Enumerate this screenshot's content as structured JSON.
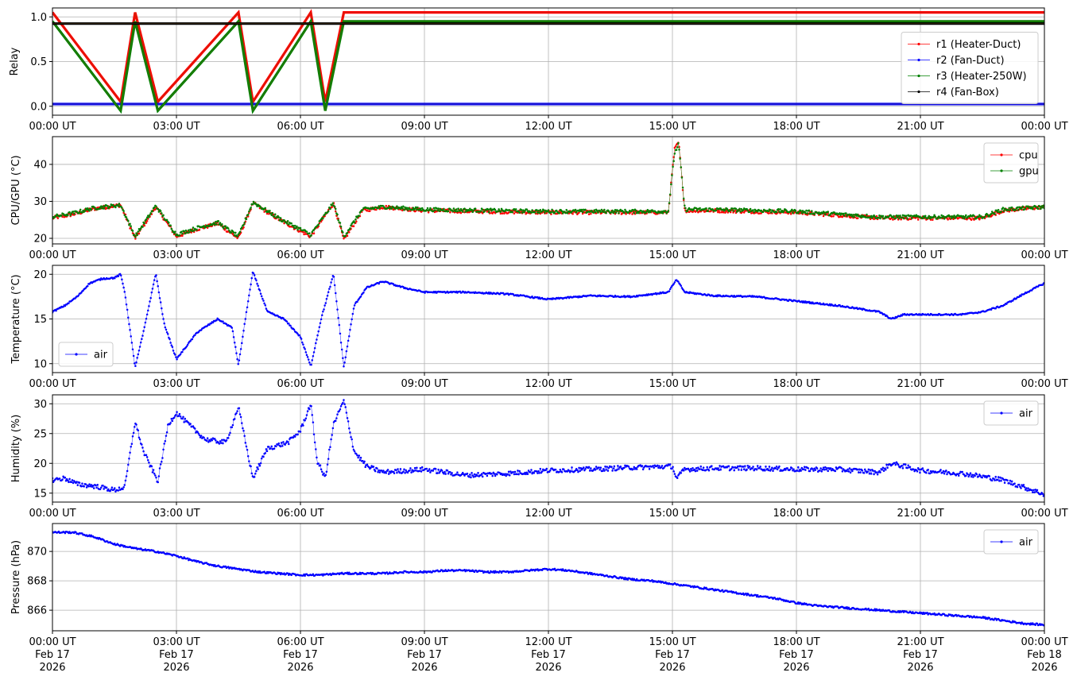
{
  "figure": {
    "time_axis": {
      "range_hours": [
        0,
        24
      ],
      "tick_hours": [
        0,
        3,
        6,
        9,
        12,
        15,
        18,
        21,
        24
      ],
      "tick_labels": [
        "00:00 UT",
        "03:00 UT",
        "06:00 UT",
        "09:00 UT",
        "12:00 UT",
        "15:00 UT",
        "18:00 UT",
        "21:00 UT",
        "00:00 UT"
      ],
      "date_labels": [
        "Feb 17",
        "Feb 17",
        "Feb 17",
        "Feb 17",
        "Feb 17",
        "Feb 17",
        "Feb 17",
        "Feb 17",
        "Feb 18"
      ],
      "year_labels": [
        "2026",
        "2026",
        "2026",
        "2026",
        "2026",
        "2026",
        "2026",
        "2026",
        "2026"
      ]
    }
  },
  "chart_data": [
    {
      "type": "line",
      "ylabel": "Relay",
      "ylim": [
        -0.1,
        1.1
      ],
      "yticks": [
        0.0,
        0.5,
        1.0
      ],
      "ytick_labels": [
        "0.0",
        "0.5",
        "1.0"
      ],
      "grid": true,
      "legend_placement": "center-right",
      "series": [
        {
          "name": "r1 (Heater-Duct)",
          "color": "#ff0000",
          "kind": "step",
          "draw_offset": 0.05,
          "x": [
            0,
            1.65,
            2.0,
            2.55,
            4.5,
            4.85,
            6.25,
            6.6,
            7.05,
            24
          ],
          "y": [
            1,
            0,
            1,
            0,
            1,
            0,
            1,
            0,
            1,
            1
          ]
        },
        {
          "name": "r2 (Fan-Duct)",
          "color": "#0000ff",
          "kind": "step",
          "draw_offset": 0.025,
          "x": [
            0,
            24
          ],
          "y": [
            0,
            0
          ]
        },
        {
          "name": "r3 (Heater-250W)",
          "color": "#008000",
          "kind": "step",
          "draw_offset": -0.05,
          "x": [
            0,
            1.65,
            2.0,
            2.55,
            4.5,
            4.85,
            6.25,
            6.6,
            7.05,
            24
          ],
          "y": [
            1,
            0,
            1,
            0,
            1,
            0,
            1,
            0,
            1,
            1
          ]
        },
        {
          "name": "r4 (Fan-Box)",
          "color": "#000000",
          "kind": "step",
          "draw_offset": -0.075,
          "x": [
            0,
            24
          ],
          "y": [
            1,
            1
          ]
        }
      ]
    },
    {
      "type": "scatter",
      "ylabel": "CPU/GPU (°C)",
      "ylim": [
        18.5,
        47.5
      ],
      "yticks": [
        20,
        30,
        40
      ],
      "ytick_labels": [
        "20",
        "30",
        "40"
      ],
      "grid": true,
      "legend_placement": "top-right",
      "series": [
        {
          "name": "cpu",
          "color": "#ff0000",
          "noise": 0.5,
          "x": [
            0,
            0.5,
            1.0,
            1.65,
            2.0,
            2.5,
            3.0,
            3.5,
            4.0,
            4.5,
            4.85,
            5.5,
            6.25,
            6.8,
            7.05,
            7.5,
            8.0,
            9.0,
            12.0,
            14.9,
            15.05,
            15.15,
            15.3,
            16.0,
            18.0,
            20.0,
            21.0,
            22.5,
            23.0,
            24.0
          ],
          "y": [
            25.5,
            26.5,
            28.0,
            29.0,
            20.0,
            28.5,
            20.5,
            22.5,
            24.0,
            20.0,
            29.5,
            25.0,
            20.5,
            29.5,
            19.5,
            27.5,
            28.5,
            27.5,
            27.0,
            27.0,
            44.0,
            46.0,
            27.5,
            27.5,
            27.0,
            25.5,
            25.5,
            25.5,
            27.5,
            28.5
          ]
        },
        {
          "name": "gpu",
          "color": "#008000",
          "noise": 0.5,
          "x": [
            0,
            0.5,
            1.0,
            1.65,
            2.0,
            2.5,
            3.0,
            3.5,
            4.0,
            4.5,
            4.85,
            5.5,
            6.25,
            6.8,
            7.05,
            7.5,
            8.0,
            9.0,
            12.0,
            14.9,
            15.05,
            15.15,
            15.3,
            16.0,
            18.0,
            20.0,
            21.0,
            22.5,
            23.0,
            24.0
          ],
          "y": [
            25.8,
            26.8,
            28.2,
            29.0,
            20.5,
            28.8,
            21.0,
            22.8,
            24.3,
            20.5,
            29.8,
            25.3,
            21.0,
            29.5,
            20.5,
            27.8,
            28.5,
            27.8,
            27.3,
            27.3,
            43.0,
            45.5,
            27.8,
            27.8,
            27.3,
            25.8,
            25.8,
            25.8,
            27.8,
            28.5
          ]
        }
      ]
    },
    {
      "type": "scatter",
      "ylabel": "Temperature (°C)",
      "ylim": [
        9.0,
        21.0
      ],
      "yticks": [
        10,
        15,
        20
      ],
      "ytick_labels": [
        "10",
        "15",
        "20"
      ],
      "grid": true,
      "legend_placement": "bottom-left",
      "series": [
        {
          "name": "air",
          "color": "#0000ff",
          "noise": 0.08,
          "x": [
            0,
            0.3,
            0.6,
            0.9,
            1.2,
            1.5,
            1.65,
            1.75,
            2.0,
            2.2,
            2.5,
            2.7,
            3.0,
            3.5,
            4.0,
            4.35,
            4.5,
            4.7,
            4.85,
            5.2,
            5.6,
            6.0,
            6.25,
            6.5,
            6.8,
            7.05,
            7.3,
            7.6,
            8.0,
            8.5,
            9.0,
            10.0,
            11.0,
            12.0,
            13.0,
            14.0,
            14.9,
            15.1,
            15.3,
            16.0,
            17.0,
            18.0,
            19.0,
            20.0,
            20.3,
            20.6,
            21.0,
            22.0,
            22.5,
            23.0,
            23.5,
            24.0
          ],
          "y": [
            15.8,
            16.5,
            17.5,
            19.0,
            19.5,
            19.6,
            20.0,
            18.0,
            9.6,
            13.5,
            20.1,
            14.5,
            10.5,
            13.5,
            15.0,
            14.0,
            9.8,
            16.0,
            20.3,
            15.8,
            15.0,
            13.0,
            9.7,
            15.0,
            20.0,
            9.6,
            16.5,
            18.5,
            19.2,
            18.5,
            18.0,
            18.0,
            17.8,
            17.2,
            17.6,
            17.5,
            18.0,
            19.4,
            18.0,
            17.6,
            17.5,
            17.0,
            16.5,
            15.8,
            15.0,
            15.5,
            15.5,
            15.5,
            15.8,
            16.5,
            17.8,
            19.0
          ]
        }
      ]
    },
    {
      "type": "scatter",
      "ylabel": "Humidity (%)",
      "ylim": [
        13.5,
        31.5
      ],
      "yticks": [
        15,
        20,
        25,
        30
      ],
      "ytick_labels": [
        "15",
        "20",
        "25",
        "30"
      ],
      "grid": true,
      "legend_placement": "top-right",
      "series": [
        {
          "name": "air",
          "color": "#0000ff",
          "noise": 0.4,
          "x": [
            0,
            0.3,
            0.6,
            1.0,
            1.5,
            1.75,
            2.0,
            2.2,
            2.55,
            2.8,
            3.0,
            3.3,
            3.7,
            4.2,
            4.5,
            4.7,
            4.85,
            5.2,
            5.7,
            6.0,
            6.25,
            6.4,
            6.6,
            6.8,
            7.05,
            7.3,
            7.6,
            8.0,
            9.0,
            10.0,
            11.0,
            12.0,
            13.0,
            14.0,
            15.0,
            15.1,
            15.3,
            16.0,
            17.0,
            18.0,
            19.0,
            20.0,
            20.3,
            20.6,
            21.0,
            22.0,
            22.5,
            23.0,
            23.5,
            24.0
          ],
          "y": [
            17.2,
            17.5,
            16.5,
            16.2,
            15.5,
            16.0,
            27.0,
            22.0,
            17.0,
            26.5,
            28.5,
            26.5,
            24.0,
            23.5,
            29.5,
            22.5,
            17.5,
            22.5,
            23.5,
            25.5,
            30.0,
            20.5,
            17.5,
            26.5,
            30.5,
            22.0,
            19.5,
            18.5,
            19.0,
            18.0,
            18.3,
            18.8,
            19.0,
            19.3,
            19.5,
            17.5,
            19.0,
            19.2,
            19.2,
            19.0,
            19.0,
            18.5,
            20.0,
            19.5,
            18.8,
            18.3,
            17.8,
            17.2,
            16.0,
            14.8
          ]
        }
      ]
    },
    {
      "type": "scatter",
      "ylabel": "Pressure (hPa)",
      "ylim": [
        864.6,
        871.9
      ],
      "yticks": [
        866,
        868,
        870
      ],
      "ytick_labels": [
        "866",
        "868",
        "870"
      ],
      "grid": true,
      "legend_placement": "top-right",
      "series": [
        {
          "name": "air",
          "color": "#0000ff",
          "noise": 0.06,
          "x": [
            0,
            0.5,
            1.0,
            1.5,
            2.0,
            2.5,
            3.0,
            3.5,
            4.0,
            4.5,
            5.0,
            5.5,
            6.0,
            6.5,
            7.0,
            7.5,
            8.0,
            8.5,
            9.0,
            9.5,
            10.0,
            10.5,
            11.0,
            11.5,
            12.0,
            12.5,
            13.0,
            13.5,
            14.0,
            14.5,
            15.0,
            15.5,
            16.0,
            16.5,
            17.0,
            17.5,
            18.0,
            18.5,
            19.0,
            19.5,
            20.0,
            20.5,
            21.0,
            21.5,
            22.0,
            22.5,
            23.0,
            23.5,
            24.0
          ],
          "y": [
            871.3,
            871.3,
            871.0,
            870.5,
            870.2,
            870.0,
            869.7,
            869.3,
            869.0,
            868.8,
            868.6,
            868.5,
            868.4,
            868.4,
            868.5,
            868.5,
            868.5,
            868.6,
            868.6,
            868.7,
            868.7,
            868.6,
            868.6,
            868.7,
            868.8,
            868.7,
            868.5,
            868.3,
            868.1,
            868.0,
            867.8,
            867.6,
            867.4,
            867.2,
            867.0,
            866.8,
            866.5,
            866.3,
            866.2,
            866.1,
            866.0,
            865.9,
            865.8,
            865.7,
            865.6,
            865.5,
            865.3,
            865.1,
            865.0
          ]
        }
      ]
    }
  ]
}
